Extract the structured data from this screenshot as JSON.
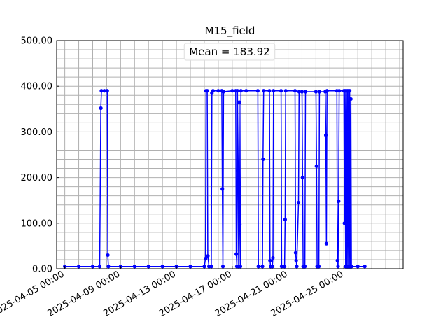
{
  "chart_data": {
    "type": "line",
    "title": "M15_field",
    "annotation": "Mean = 183.92",
    "xlabel": "",
    "ylabel": "",
    "ylim": [
      0,
      500
    ],
    "xlim": [
      "2025-04-04T10:00",
      "2025-04-29T06:00"
    ],
    "grid": true,
    "y_ticks": [
      0,
      100,
      200,
      300,
      400,
      500
    ],
    "y_tick_labels": [
      "0.00",
      "100.00",
      "200.00",
      "300.00",
      "400.00",
      "500.00"
    ],
    "x_ticks": [
      "2025-04-05T00:00",
      "2025-04-09T00:00",
      "2025-04-13T00:00",
      "2025-04-17T00:00",
      "2025-04-21T00:00",
      "2025-04-25T00:00"
    ],
    "x_tick_labels": [
      "2025-04-05 00:00",
      "2025-04-09 00:00",
      "2025-04-13 00:00",
      "2025-04-17 00:00",
      "2025-04-21 00:00",
      "2025-04-25 00:00"
    ],
    "series": [
      {
        "color": "#0000ff",
        "marker": "circle",
        "points": [
          [
            "2025-04-05T00:00",
            5
          ],
          [
            "2025-04-06T00:00",
            5
          ],
          [
            "2025-04-07T00:00",
            5
          ],
          [
            "2025-04-07T12:00",
            5
          ],
          [
            "2025-04-07T14:00",
            352
          ],
          [
            "2025-04-07T15:00",
            390
          ],
          [
            "2025-04-07T20:00",
            390
          ],
          [
            "2025-04-08T01:00",
            390
          ],
          [
            "2025-04-08T02:00",
            30
          ],
          [
            "2025-04-08T03:00",
            5
          ],
          [
            "2025-04-09T00:00",
            5
          ],
          [
            "2025-04-10T00:00",
            5
          ],
          [
            "2025-04-11T00:00",
            5
          ],
          [
            "2025-04-12T00:00",
            5
          ],
          [
            "2025-04-13T00:00",
            5
          ],
          [
            "2025-04-14T00:00",
            5
          ],
          [
            "2025-04-15T00:00",
            5
          ],
          [
            "2025-04-15T02:00",
            22
          ],
          [
            "2025-04-15T03:00",
            390
          ],
          [
            "2025-04-15T05:00",
            390
          ],
          [
            "2025-04-15T06:00",
            28
          ],
          [
            "2025-04-15T08:00",
            5
          ],
          [
            "2025-04-15T12:00",
            5
          ],
          [
            "2025-04-15T13:00",
            385
          ],
          [
            "2025-04-15T15:00",
            390
          ],
          [
            "2025-04-16T00:00",
            390
          ],
          [
            "2025-04-16T06:00",
            390
          ],
          [
            "2025-04-16T07:00",
            175
          ],
          [
            "2025-04-16T08:00",
            5
          ],
          [
            "2025-04-16T09:00",
            388
          ],
          [
            "2025-04-17T00:00",
            390
          ],
          [
            "2025-04-17T06:00",
            390
          ],
          [
            "2025-04-17T07:00",
            32
          ],
          [
            "2025-04-17T08:00",
            5
          ],
          [
            "2025-04-17T09:00",
            390
          ],
          [
            "2025-04-17T10:00",
            215
          ],
          [
            "2025-04-17T11:00",
            5
          ],
          [
            "2025-04-17T12:00",
            365
          ],
          [
            "2025-04-17T13:00",
            97
          ],
          [
            "2025-04-17T14:00",
            5
          ],
          [
            "2025-04-17T15:00",
            390
          ],
          [
            "2025-04-18T00:00",
            390
          ],
          [
            "2025-04-18T20:00",
            390
          ],
          [
            "2025-04-18T21:00",
            5
          ],
          [
            "2025-04-19T04:00",
            5
          ],
          [
            "2025-04-19T05:00",
            240
          ],
          [
            "2025-04-19T06:00",
            390
          ],
          [
            "2025-04-19T16:00",
            390
          ],
          [
            "2025-04-19T17:00",
            18
          ],
          [
            "2025-04-19T18:00",
            5
          ],
          [
            "2025-04-19T21:00",
            5
          ],
          [
            "2025-04-19T22:00",
            24
          ],
          [
            "2025-04-19T23:00",
            390
          ],
          [
            "2025-04-20T12:00",
            390
          ],
          [
            "2025-04-20T13:00",
            5
          ],
          [
            "2025-04-20T18:00",
            5
          ],
          [
            "2025-04-20T19:00",
            108
          ],
          [
            "2025-04-20T20:00",
            390
          ],
          [
            "2025-04-21T12:00",
            390
          ],
          [
            "2025-04-21T13:00",
            35
          ],
          [
            "2025-04-21T14:00",
            18
          ],
          [
            "2025-04-21T15:00",
            5
          ],
          [
            "2025-04-21T18:00",
            145
          ],
          [
            "2025-04-21T19:00",
            388
          ],
          [
            "2025-04-22T00:00",
            388
          ],
          [
            "2025-04-22T01:00",
            200
          ],
          [
            "2025-04-22T02:00",
            5
          ],
          [
            "2025-04-22T05:00",
            5
          ],
          [
            "2025-04-22T06:00",
            388
          ],
          [
            "2025-04-23T00:00",
            388
          ],
          [
            "2025-04-23T01:00",
            225
          ],
          [
            "2025-04-23T02:00",
            5
          ],
          [
            "2025-04-23T05:00",
            5
          ],
          [
            "2025-04-23T06:00",
            388
          ],
          [
            "2025-04-23T16:00",
            388
          ],
          [
            "2025-04-23T17:00",
            293
          ],
          [
            "2025-04-23T18:00",
            55
          ],
          [
            "2025-04-23T19:00",
            390
          ],
          [
            "2025-04-24T12:00",
            390
          ],
          [
            "2025-04-24T13:00",
            18
          ],
          [
            "2025-04-24T14:00",
            5
          ],
          [
            "2025-04-24T15:00",
            148
          ],
          [
            "2025-04-24T16:00",
            390
          ],
          [
            "2025-04-25T00:00",
            390
          ],
          [
            "2025-04-25T01:00",
            100
          ],
          [
            "2025-04-25T02:00",
            390
          ],
          [
            "2025-04-25T03:00",
            5
          ],
          [
            "2025-04-25T04:00",
            390
          ],
          [
            "2025-04-25T05:00",
            5
          ],
          [
            "2025-04-25T06:00",
            390
          ],
          [
            "2025-04-25T07:00",
            5
          ],
          [
            "2025-04-25T08:00",
            390
          ],
          [
            "2025-04-25T09:00",
            5
          ],
          [
            "2025-04-25T10:00",
            390
          ],
          [
            "2025-04-25T11:00",
            5
          ],
          [
            "2025-04-25T12:00",
            372
          ],
          [
            "2025-04-25T13:00",
            5
          ],
          [
            "2025-04-26T00:00",
            5
          ],
          [
            "2025-04-26T12:00",
            5
          ]
        ]
      }
    ]
  }
}
